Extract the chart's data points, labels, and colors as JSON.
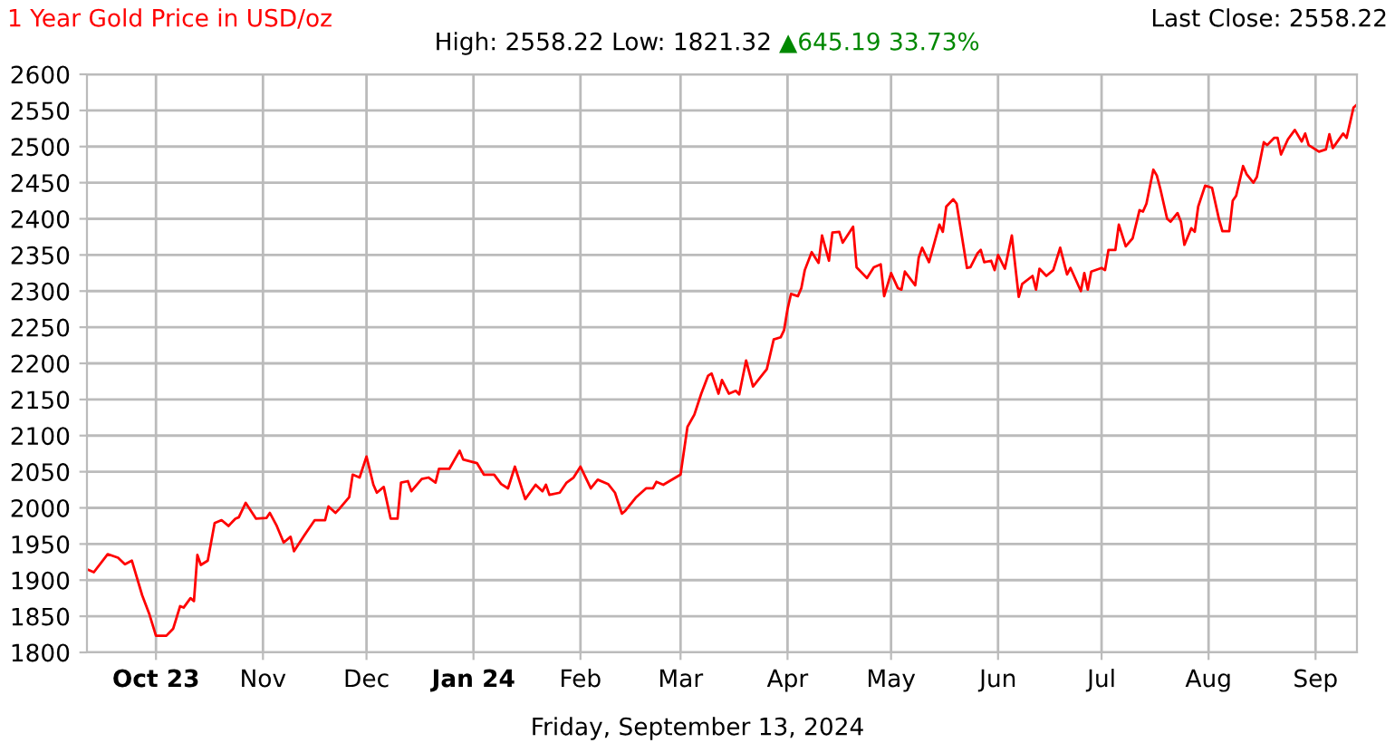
{
  "chart_data": {
    "type": "line",
    "title": "1 Year Gold Price in USD/oz",
    "subtitle": "High: 2558.22 Low: 1821.32",
    "annotations": [
      "▲645.19 33.73%",
      "Last Close: 2558.22",
      "Friday, September 13, 2024"
    ],
    "x": [
      "2023-09-11",
      "2023-09-13",
      "2023-09-17",
      "2023-09-20",
      "2023-09-22",
      "2023-09-24",
      "2023-09-27",
      "2023-09-29",
      "2023-10-01",
      "2023-10-04",
      "2023-10-06",
      "2023-10-08",
      "2023-10-09",
      "2023-10-11",
      "2023-10-12",
      "2023-10-13",
      "2023-10-14",
      "2023-10-16",
      "2023-10-18",
      "2023-10-20",
      "2023-10-22",
      "2023-10-24",
      "2023-10-25",
      "2023-10-27",
      "2023-10-30",
      "2023-11-02",
      "2023-11-03",
      "2023-11-05",
      "2023-11-07",
      "2023-11-09",
      "2023-11-10",
      "2023-11-13",
      "2023-11-16",
      "2023-11-19",
      "2023-11-20",
      "2023-11-22",
      "2023-11-23",
      "2023-11-26",
      "2023-11-27",
      "2023-11-29",
      "2023-12-01",
      "2023-12-03",
      "2023-12-04",
      "2023-12-06",
      "2023-12-08",
      "2023-12-10",
      "2023-12-11",
      "2023-12-13",
      "2023-12-14",
      "2023-12-17",
      "2023-12-19",
      "2023-12-21",
      "2023-12-22",
      "2023-12-25",
      "2023-12-28",
      "2023-12-29",
      "2024-01-02",
      "2024-01-04",
      "2024-01-07",
      "2024-01-09",
      "2024-01-11",
      "2024-01-13",
      "2024-01-16",
      "2024-01-19",
      "2024-01-21",
      "2024-01-22",
      "2024-01-23",
      "2024-01-26",
      "2024-01-28",
      "2024-01-30",
      "2024-02-01",
      "2024-02-04",
      "2024-02-06",
      "2024-02-09",
      "2024-02-11",
      "2024-02-13",
      "2024-02-14",
      "2024-02-17",
      "2024-02-20",
      "2024-02-22",
      "2024-02-23",
      "2024-02-25",
      "2024-03-01",
      "2024-03-03",
      "2024-03-05",
      "2024-03-07",
      "2024-03-09",
      "2024-03-10",
      "2024-03-12",
      "2024-03-13",
      "2024-03-15",
      "2024-03-17",
      "2024-03-18",
      "2024-03-20",
      "2024-03-22",
      "2024-03-26",
      "2024-03-28",
      "2024-03-30",
      "2024-03-31",
      "2024-04-01",
      "2024-04-02",
      "2024-04-04",
      "2024-04-05",
      "2024-04-06",
      "2024-04-08",
      "2024-04-10",
      "2024-04-11",
      "2024-04-13",
      "2024-04-14",
      "2024-04-16",
      "2024-04-17",
      "2024-04-20",
      "2024-04-21",
      "2024-04-24",
      "2024-04-26",
      "2024-04-28",
      "2024-04-29",
      "2024-05-01",
      "2024-05-03",
      "2024-05-04",
      "2024-05-05",
      "2024-05-08",
      "2024-05-09",
      "2024-05-10",
      "2024-05-12",
      "2024-05-15",
      "2024-05-16",
      "2024-05-17",
      "2024-05-19",
      "2024-05-20",
      "2024-05-23",
      "2024-05-24",
      "2024-05-26",
      "2024-05-27",
      "2024-05-28",
      "2024-05-30",
      "2024-05-31",
      "2024-06-01",
      "2024-06-03",
      "2024-06-05",
      "2024-06-07",
      "2024-06-08",
      "2024-06-11",
      "2024-06-12",
      "2024-06-13",
      "2024-06-15",
      "2024-06-17",
      "2024-06-19",
      "2024-06-21",
      "2024-06-22",
      "2024-06-25",
      "2024-06-26",
      "2024-06-27",
      "2024-06-28",
      "2024-07-01",
      "2024-07-02",
      "2024-07-03",
      "2024-07-05",
      "2024-07-06",
      "2024-07-08",
      "2024-07-10",
      "2024-07-12",
      "2024-07-13",
      "2024-07-14",
      "2024-07-16",
      "2024-07-17",
      "2024-07-18",
      "2024-07-20",
      "2024-07-21",
      "2024-07-23",
      "2024-07-24",
      "2024-07-25",
      "2024-07-27",
      "2024-07-28",
      "2024-07-29",
      "2024-07-31",
      "2024-08-02",
      "2024-08-04",
      "2024-08-05",
      "2024-08-07",
      "2024-08-08",
      "2024-08-09",
      "2024-08-11",
      "2024-08-12",
      "2024-08-14",
      "2024-08-15",
      "2024-08-17",
      "2024-08-18",
      "2024-08-20",
      "2024-08-21",
      "2024-08-22",
      "2024-08-24",
      "2024-08-26",
      "2024-08-28",
      "2024-08-29",
      "2024-08-30",
      "2024-09-02",
      "2024-09-04",
      "2024-09-05",
      "2024-09-06",
      "2024-09-09",
      "2024-09-10",
      "2024-09-12",
      "2024-09-13"
    ],
    "series": [
      {
        "color": "#ff0000",
        "values": [
          1915,
          1911,
          1936,
          1931,
          1922,
          1927,
          1879,
          1854,
          1823,
          1823,
          1833,
          1864,
          1862,
          1875,
          1871,
          1935,
          1921,
          1927,
          1979,
          1983,
          1975,
          1985,
          1987,
          2007,
          1985,
          1986,
          1993,
          1975,
          1952,
          1960,
          1940,
          1962,
          1983,
          1983,
          2002,
          1993,
          1998,
          2015,
          2046,
          2042,
          2071,
          2032,
          2021,
          2029,
          1985,
          1985,
          2035,
          2037,
          2023,
          2040,
          2042,
          2035,
          2054,
          2054,
          2079,
          2067,
          2062,
          2046,
          2046,
          2033,
          2027,
          2057,
          2012,
          2032,
          2023,
          2032,
          2018,
          2021,
          2035,
          2042,
          2057,
          2027,
          2039,
          2033,
          2021,
          1992,
          1996,
          2014,
          2027,
          2027,
          2036,
          2032,
          2046,
          2112,
          2129,
          2158,
          2183,
          2186,
          2158,
          2177,
          2158,
          2162,
          2157,
          2204,
          2168,
          2192,
          2233,
          2236,
          2246,
          2275,
          2296,
          2293,
          2304,
          2329,
          2354,
          2339,
          2377,
          2342,
          2381,
          2382,
          2367,
          2389,
          2333,
          2318,
          2333,
          2337,
          2293,
          2325,
          2304,
          2302,
          2327,
          2308,
          2346,
          2360,
          2340,
          2392,
          2382,
          2417,
          2427,
          2421,
          2332,
          2333,
          2352,
          2357,
          2340,
          2342,
          2329,
          2350,
          2331,
          2377,
          2292,
          2310,
          2321,
          2302,
          2331,
          2321,
          2329,
          2360,
          2323,
          2332,
          2300,
          2325,
          2302,
          2327,
          2332,
          2329,
          2357,
          2357,
          2392,
          2362,
          2373,
          2412,
          2410,
          2421,
          2468,
          2460,
          2442,
          2400,
          2396,
          2408,
          2396,
          2364,
          2387,
          2382,
          2417,
          2446,
          2443,
          2400,
          2383,
          2383,
          2425,
          2432,
          2473,
          2462,
          2450,
          2458,
          2506,
          2502,
          2512,
          2512,
          2489,
          2510,
          2523,
          2507,
          2518,
          2502,
          2493,
          2496,
          2517,
          2498,
          2518,
          2512,
          2554,
          2558.22
        ]
      }
    ],
    "xlim": [
      "2023-09-11",
      "2024-09-13"
    ],
    "xticks": [
      {
        "value": "2023-10-01",
        "label": "Oct 23"
      },
      {
        "value": "2023-11-01",
        "label": "Nov"
      },
      {
        "value": "2023-12-01",
        "label": "Dec"
      },
      {
        "value": "2024-01-01",
        "label": "Jan 24"
      },
      {
        "value": "2024-02-01",
        "label": "Feb"
      },
      {
        "value": "2024-03-01",
        "label": "Mar"
      },
      {
        "value": "2024-04-01",
        "label": "Apr"
      },
      {
        "value": "2024-05-01",
        "label": "May"
      },
      {
        "value": "2024-06-01",
        "label": "Jun"
      },
      {
        "value": "2024-07-01",
        "label": "Jul"
      },
      {
        "value": "2024-08-01",
        "label": "Aug"
      },
      {
        "value": "2024-09-01",
        "label": "Sep"
      }
    ],
    "ylim": [
      1800,
      2600
    ],
    "yticks": [
      1800,
      1850,
      1900,
      1950,
      2000,
      2050,
      2100,
      2150,
      2200,
      2250,
      2300,
      2350,
      2400,
      2450,
      2500,
      2550,
      2600
    ],
    "grid": true,
    "legend": false
  }
}
